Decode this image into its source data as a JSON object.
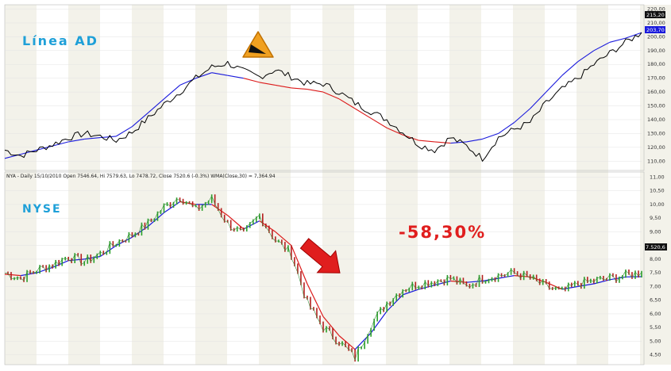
{
  "chart_data": [
    {
      "type": "line",
      "title": "Línea AD",
      "ylim": [
        105,
        222
      ],
      "ticks": [
        110,
        120,
        130,
        140,
        150,
        160,
        170,
        180,
        190,
        200,
        210,
        220
      ],
      "tick_labels": [
        "110,00",
        "120,00",
        "130,00",
        "140,00",
        "150,00",
        "160,00",
        "170,00",
        "180,00",
        "190,00",
        "200,00",
        "210,00",
        "220,00"
      ],
      "last_price_label": "215,20",
      "ma_price_label": "203,70",
      "colors": {
        "price": "#000000",
        "ma_up": "#1a1adc",
        "ma_down": "#dc1a1a",
        "last_label_bg": "#111111",
        "ma_label_bg": "#1a1adc"
      },
      "x": [
        0,
        10,
        20,
        30,
        40,
        50,
        60,
        70,
        80,
        90,
        100,
        110,
        120,
        130,
        140,
        150,
        160,
        170,
        180,
        190,
        200
      ],
      "series": [
        {
          "values": [
            118,
            114,
            118,
            122,
            127,
            130,
            128,
            125,
            131,
            141,
            151,
            160,
            170,
            178,
            181,
            175,
            171,
            176,
            171,
            166,
            166
          ]
        },
        {
          "values": [
            112,
            115,
            118,
            121,
            124,
            126,
            127,
            128,
            135,
            145,
            155,
            165,
            170,
            174,
            172,
            170,
            167,
            165,
            163,
            162,
            160
          ]
        },
        {
          "values": [
            163,
            160,
            152,
            146,
            140,
            131,
            122,
            118,
            127,
            121,
            112,
            127,
            133,
            138,
            152,
            162,
            170,
            180,
            188,
            196,
            203
          ]
        },
        {
          "values": [
            160,
            155,
            148,
            141,
            134,
            129,
            125,
            124,
            123,
            124,
            126,
            130,
            138,
            148,
            160,
            172,
            182,
            190,
            196,
            199,
            203
          ]
        }
      ],
      "x2": [
        200,
        210,
        220,
        230,
        240,
        250,
        260,
        270,
        280,
        290,
        300,
        310,
        320,
        330,
        340,
        350,
        360,
        370,
        380,
        390,
        400
      ],
      "icon": "warning-triangle-icon"
    },
    {
      "type": "line",
      "title": "NYSE",
      "header": "NYA - Daily 15/10/2010 Open 7546.64, Hi 7579.63, Lo 7478.72, Close 7520.6 (-0.3%) WMA(Close,30) = 7,364.94",
      "ylim": [
        4.2,
        11.1
      ],
      "ticks": [
        4.5,
        5,
        5.5,
        6,
        6.5,
        7,
        7.5,
        8,
        8.5,
        9,
        9.5,
        10,
        10.5,
        11
      ],
      "tick_labels": [
        "4,50",
        "5,00",
        "5,50",
        "6,00",
        "6,50",
        "7,00",
        "7,50",
        "8,00",
        "8,50",
        "9,00",
        "9,50",
        "10,00",
        "10,50",
        "11,00"
      ],
      "last_price_label": "7.520,6",
      "annotation": "-58,30%",
      "colors": {
        "price_up": "#2aa02a",
        "price_down": "#b41e1e",
        "ma_up": "#1a1adc",
        "ma_down": "#dc1a1a",
        "last_label_bg": "#111111",
        "annotation": "#e01e1e"
      },
      "x": [
        0,
        10,
        20,
        30,
        40,
        50,
        60,
        70,
        80,
        90,
        100,
        110,
        120,
        130,
        140,
        150,
        160,
        170,
        180,
        190,
        200,
        210,
        220,
        230,
        240,
        250,
        260,
        270,
        280,
        290,
        300,
        310,
        320,
        330,
        340,
        350,
        360,
        370,
        380,
        390,
        400
      ],
      "series": [
        {
          "values": [
            7.5,
            7.3,
            7.6,
            7.8,
            8.1,
            7.9,
            8.2,
            8.6,
            8.9,
            9.3,
            9.9,
            10.3,
            9.8,
            10.2,
            9.3,
            8.9,
            9.6,
            8.7,
            8.2,
            6.4,
            5.5,
            5.0,
            4.4,
            5.6,
            6.4,
            6.9,
            7.1,
            7.2,
            7.3,
            7.0,
            7.3,
            7.4,
            7.5,
            7.3,
            7.0,
            6.8,
            7.1,
            7.2,
            7.3,
            7.4,
            7.52
          ]
        },
        {
          "values": [
            7.45,
            7.4,
            7.5,
            7.7,
            7.95,
            8.0,
            8.1,
            8.5,
            8.8,
            9.2,
            9.7,
            10.1,
            10.0,
            10.0,
            9.6,
            9.1,
            9.4,
            9.0,
            8.5,
            7.1,
            5.9,
            5.2,
            4.7,
            5.3,
            6.1,
            6.7,
            6.9,
            7.05,
            7.2,
            7.15,
            7.2,
            7.3,
            7.4,
            7.35,
            7.15,
            6.9,
            7.0,
            7.1,
            7.25,
            7.35,
            7.36
          ]
        }
      ]
    }
  ]
}
